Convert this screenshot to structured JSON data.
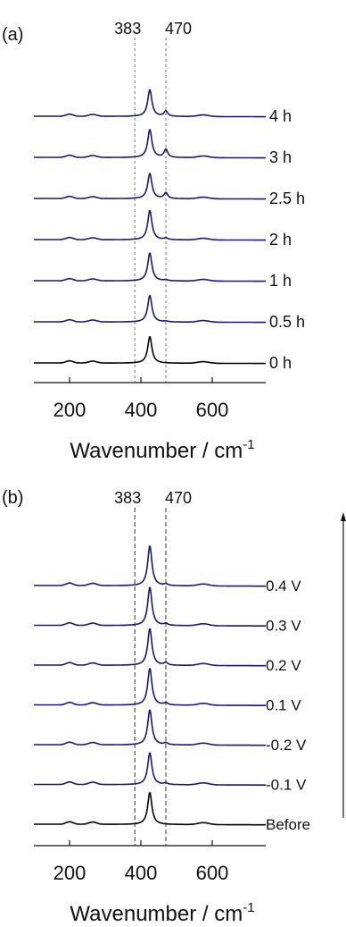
{
  "chart_data": [
    {
      "panel": "(a)",
      "type": "line",
      "xlabel_main": "Wavenumber / cm",
      "xlabel_sup": "-1",
      "xlim": [
        100,
        750
      ],
      "xticks": [
        200,
        400,
        600
      ],
      "xtick_labels": [
        "200",
        "400",
        "600"
      ],
      "marker_lines": [
        383,
        470
      ],
      "marker_labels": [
        "383",
        "470"
      ],
      "y_axis": "offset (stacked) intensity, no scale shown",
      "series": [
        {
          "name": "0 h",
          "color": "#000000",
          "peak_at": 425,
          "peak_height": 1.0,
          "shoulder_470": 0.0
        },
        {
          "name": "0.5 h",
          "color": "#191970",
          "peak_at": 425,
          "peak_height": 1.0,
          "shoulder_470": 0.03
        },
        {
          "name": "1 h",
          "color": "#191970",
          "peak_at": 425,
          "peak_height": 1.05,
          "shoulder_470": 0.04
        },
        {
          "name": "2 h",
          "color": "#191970",
          "peak_at": 425,
          "peak_height": 1.1,
          "shoulder_470": 0.06
        },
        {
          "name": "2.5 h",
          "color": "#191970",
          "peak_at": 425,
          "peak_height": 0.95,
          "shoulder_470": 0.22
        },
        {
          "name": "3 h",
          "color": "#191970",
          "peak_at": 425,
          "peak_height": 1.05,
          "shoulder_470": 0.3
        },
        {
          "name": "4 h",
          "color": "#191970",
          "peak_at": 425,
          "peak_height": 1.0,
          "shoulder_470": 0.2
        }
      ]
    },
    {
      "panel": "(b)",
      "type": "line",
      "xlabel_main": "Wavenumber / cm",
      "xlabel_sup": "-1",
      "xlim": [
        100,
        750
      ],
      "xticks": [
        200,
        400,
        600
      ],
      "xtick_labels": [
        "200",
        "400",
        "600"
      ],
      "marker_lines": [
        383,
        470
      ],
      "marker_labels": [
        "383",
        "470"
      ],
      "y_axis": "offset (stacked) intensity, no scale shown",
      "arrow": "upward arrow on right side",
      "series": [
        {
          "name": "Before",
          "color": "#000000",
          "peak_at": 425,
          "peak_height": 1.0,
          "shoulder_470": 0.0
        },
        {
          "name": "-0.1 V",
          "color": "#191970",
          "peak_at": 425,
          "peak_height": 1.0,
          "shoulder_470": 0.05
        },
        {
          "name": "-0.2 V",
          "color": "#191970",
          "peak_at": 425,
          "peak_height": 1.1,
          "shoulder_470": 0.06
        },
        {
          "name": "0.1 V",
          "color": "#191970",
          "peak_at": 425,
          "peak_height": 1.15,
          "shoulder_470": 0.07
        },
        {
          "name": "0.2 V",
          "color": "#191970",
          "peak_at": 425,
          "peak_height": 1.15,
          "shoulder_470": 0.08
        },
        {
          "name": "0.3 V",
          "color": "#191970",
          "peak_at": 425,
          "peak_height": 1.2,
          "shoulder_470": 0.06
        },
        {
          "name": "0.4 V",
          "color": "#191970",
          "peak_at": 425,
          "peak_height": 1.25,
          "shoulder_470": 0.05
        }
      ]
    }
  ]
}
